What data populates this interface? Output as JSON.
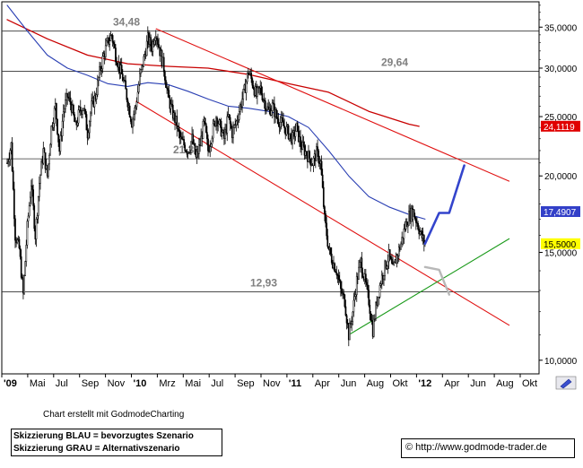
{
  "chart_data": {
    "type": "candlestick",
    "y_scale": "log",
    "ylim": [
      9500,
      38500
    ],
    "y_ticks": [
      10000,
      15000,
      20000,
      25000,
      30000,
      35000
    ],
    "y_tick_labels": [
      "10,0000",
      "15,0000",
      "20,0000",
      "25,0000",
      "30,0000",
      "35,0000"
    ],
    "x_tick_labels": [
      "'09",
      "Mai",
      "Jul",
      "Sep",
      "Nov",
      "'10",
      "Mrz",
      "Mai",
      "Jul",
      "Sep",
      "Nov",
      "'11",
      "Apr",
      "Jun",
      "Aug",
      "Okt",
      "'12",
      "Apr",
      "Jun",
      "Aug",
      "Okt"
    ],
    "x_tick_bold": [
      "'09",
      "'10",
      "'11",
      "'12"
    ],
    "price_path": [
      [
        0,
        21000
      ],
      [
        4,
        22500
      ],
      [
        8,
        16000
      ],
      [
        12,
        15200
      ],
      [
        16,
        12800
      ],
      [
        20,
        16500
      ],
      [
        24,
        19500
      ],
      [
        28,
        16000
      ],
      [
        32,
        19500
      ],
      [
        36,
        22000
      ],
      [
        40,
        20000
      ],
      [
        44,
        24000
      ],
      [
        48,
        26000
      ],
      [
        52,
        22000
      ],
      [
        56,
        25500
      ],
      [
        60,
        27000
      ],
      [
        64,
        26000
      ],
      [
        68,
        24000
      ],
      [
        72,
        25500
      ],
      [
        76,
        26000
      ],
      [
        80,
        23500
      ],
      [
        84,
        26000
      ],
      [
        88,
        27000
      ],
      [
        92,
        29500
      ],
      [
        96,
        31500
      ],
      [
        100,
        33000
      ],
      [
        104,
        34000
      ],
      [
        108,
        31500
      ],
      [
        112,
        30000
      ],
      [
        116,
        28500
      ],
      [
        120,
        26500
      ],
      [
        124,
        24500
      ],
      [
        128,
        26000
      ],
      [
        132,
        29000
      ],
      [
        136,
        31000
      ],
      [
        140,
        33500
      ],
      [
        144,
        32500
      ],
      [
        148,
        34480
      ],
      [
        152,
        32000
      ],
      [
        156,
        30000
      ],
      [
        160,
        27000
      ],
      [
        164,
        25500
      ],
      [
        168,
        24500
      ],
      [
        172,
        23000
      ],
      [
        176,
        22500
      ],
      [
        180,
        22000
      ],
      [
        184,
        23000
      ],
      [
        188,
        21330
      ],
      [
        192,
        22500
      ],
      [
        196,
        24500
      ],
      [
        200,
        22000
      ],
      [
        204,
        23500
      ],
      [
        208,
        25000
      ],
      [
        212,
        24000
      ],
      [
        216,
        23000
      ],
      [
        220,
        25000
      ],
      [
        224,
        23500
      ],
      [
        228,
        24500
      ],
      [
        232,
        26000
      ],
      [
        236,
        27500
      ],
      [
        240,
        29640
      ],
      [
        244,
        28500
      ],
      [
        248,
        27000
      ],
      [
        252,
        27800
      ],
      [
        256,
        26500
      ],
      [
        260,
        25500
      ],
      [
        264,
        26000
      ],
      [
        268,
        25000
      ],
      [
        272,
        24500
      ],
      [
        276,
        24000
      ],
      [
        280,
        23500
      ],
      [
        284,
        23000
      ],
      [
        288,
        24000
      ],
      [
        292,
        22500
      ],
      [
        296,
        22000
      ],
      [
        300,
        21500
      ],
      [
        304,
        21000
      ],
      [
        308,
        21800
      ],
      [
        312,
        21000
      ],
      [
        316,
        17000
      ],
      [
        320,
        15200
      ],
      [
        324,
        14500
      ],
      [
        328,
        14000
      ],
      [
        332,
        13000
      ],
      [
        336,
        12500
      ],
      [
        340,
        11000
      ],
      [
        344,
        12000
      ],
      [
        348,
        13500
      ],
      [
        352,
        14500
      ],
      [
        356,
        13500
      ],
      [
        360,
        12500
      ],
      [
        364,
        11200
      ],
      [
        368,
        12500
      ],
      [
        372,
        13500
      ],
      [
        376,
        14200
      ],
      [
        380,
        14800
      ],
      [
        384,
        14000
      ],
      [
        388,
        14800
      ],
      [
        392,
        15500
      ],
      [
        396,
        16500
      ],
      [
        400,
        17200
      ],
      [
        404,
        17490
      ],
      [
        408,
        16800
      ],
      [
        412,
        16000
      ],
      [
        416,
        15500
      ]
    ],
    "moving_average_fast": [
      [
        0,
        38000
      ],
      [
        20,
        34500
      ],
      [
        40,
        31500
      ],
      [
        60,
        30000
      ],
      [
        80,
        29200
      ],
      [
        100,
        28300
      ],
      [
        120,
        28000
      ],
      [
        140,
        28400
      ],
      [
        160,
        28200
      ],
      [
        180,
        27500
      ],
      [
        200,
        26700
      ],
      [
        220,
        26000
      ],
      [
        240,
        25800
      ],
      [
        260,
        25500
      ],
      [
        280,
        25000
      ],
      [
        300,
        24000
      ],
      [
        320,
        22000
      ],
      [
        340,
        20000
      ],
      [
        360,
        18500
      ],
      [
        380,
        17800
      ],
      [
        400,
        17300
      ],
      [
        416,
        17000
      ]
    ],
    "moving_average_slow": [
      [
        0,
        36000
      ],
      [
        40,
        33500
      ],
      [
        80,
        31500
      ],
      [
        120,
        30500
      ],
      [
        160,
        30200
      ],
      [
        200,
        30000
      ],
      [
        240,
        29300
      ],
      [
        280,
        28300
      ],
      [
        320,
        27400
      ],
      [
        360,
        25500
      ],
      [
        400,
        24300
      ],
      [
        410,
        24100
      ]
    ],
    "horizontal_levels": [
      34480,
      29640,
      21330,
      12930
    ],
    "level_labels": [
      "34,48",
      "29,64",
      "21,33",
      "12,93"
    ],
    "channel_upper": {
      "from": [
        148,
        34800
      ],
      "to": [
        500,
        19600
      ]
    },
    "channel_lower": {
      "from": [
        128,
        26500
      ],
      "to": [
        500,
        11400
      ]
    },
    "support_line": {
      "from": [
        340,
        11000
      ],
      "to": [
        500,
        15800
      ]
    },
    "scenario_blue": [
      [
        416,
        15500
      ],
      [
        430,
        17400
      ],
      [
        440,
        17400
      ],
      [
        455,
        20800
      ]
    ],
    "scenario_grey": [
      [
        416,
        14200
      ],
      [
        430,
        14050
      ],
      [
        440,
        12800
      ]
    ],
    "price_tags": [
      {
        "label": "24,1119",
        "value": 24111,
        "bg": "#e00000",
        "fg": "#ffffff"
      },
      {
        "label": "17,4907",
        "value": 17490,
        "bg": "#3340c8",
        "fg": "#ffffff"
      },
      {
        "label": "15,5000",
        "value": 15500,
        "bg": "#ffff00",
        "fg": "#000000"
      }
    ]
  },
  "colors": {
    "candles": "#000000",
    "ma_fast": "#2a3fb3",
    "ma_slow": "#c80000",
    "channel": "#e01010",
    "support": "#1a9a1a",
    "scenario_blue": "#3344cc",
    "scenario_grey": "#b8b8b8",
    "levels": "#333333",
    "level_labels": "#808080"
  },
  "footer": {
    "note": "Chart erstellt mit GodmodeCharting",
    "legend_blue": "Skizzierung BLAU = bevorzugtes Szenario",
    "legend_grey": "Skizzierung GRAU = Alternativszenario",
    "copyright": "© http://www.godmode-trader.de"
  },
  "toolbar": {
    "pencil_icon": "pencil-icon"
  }
}
